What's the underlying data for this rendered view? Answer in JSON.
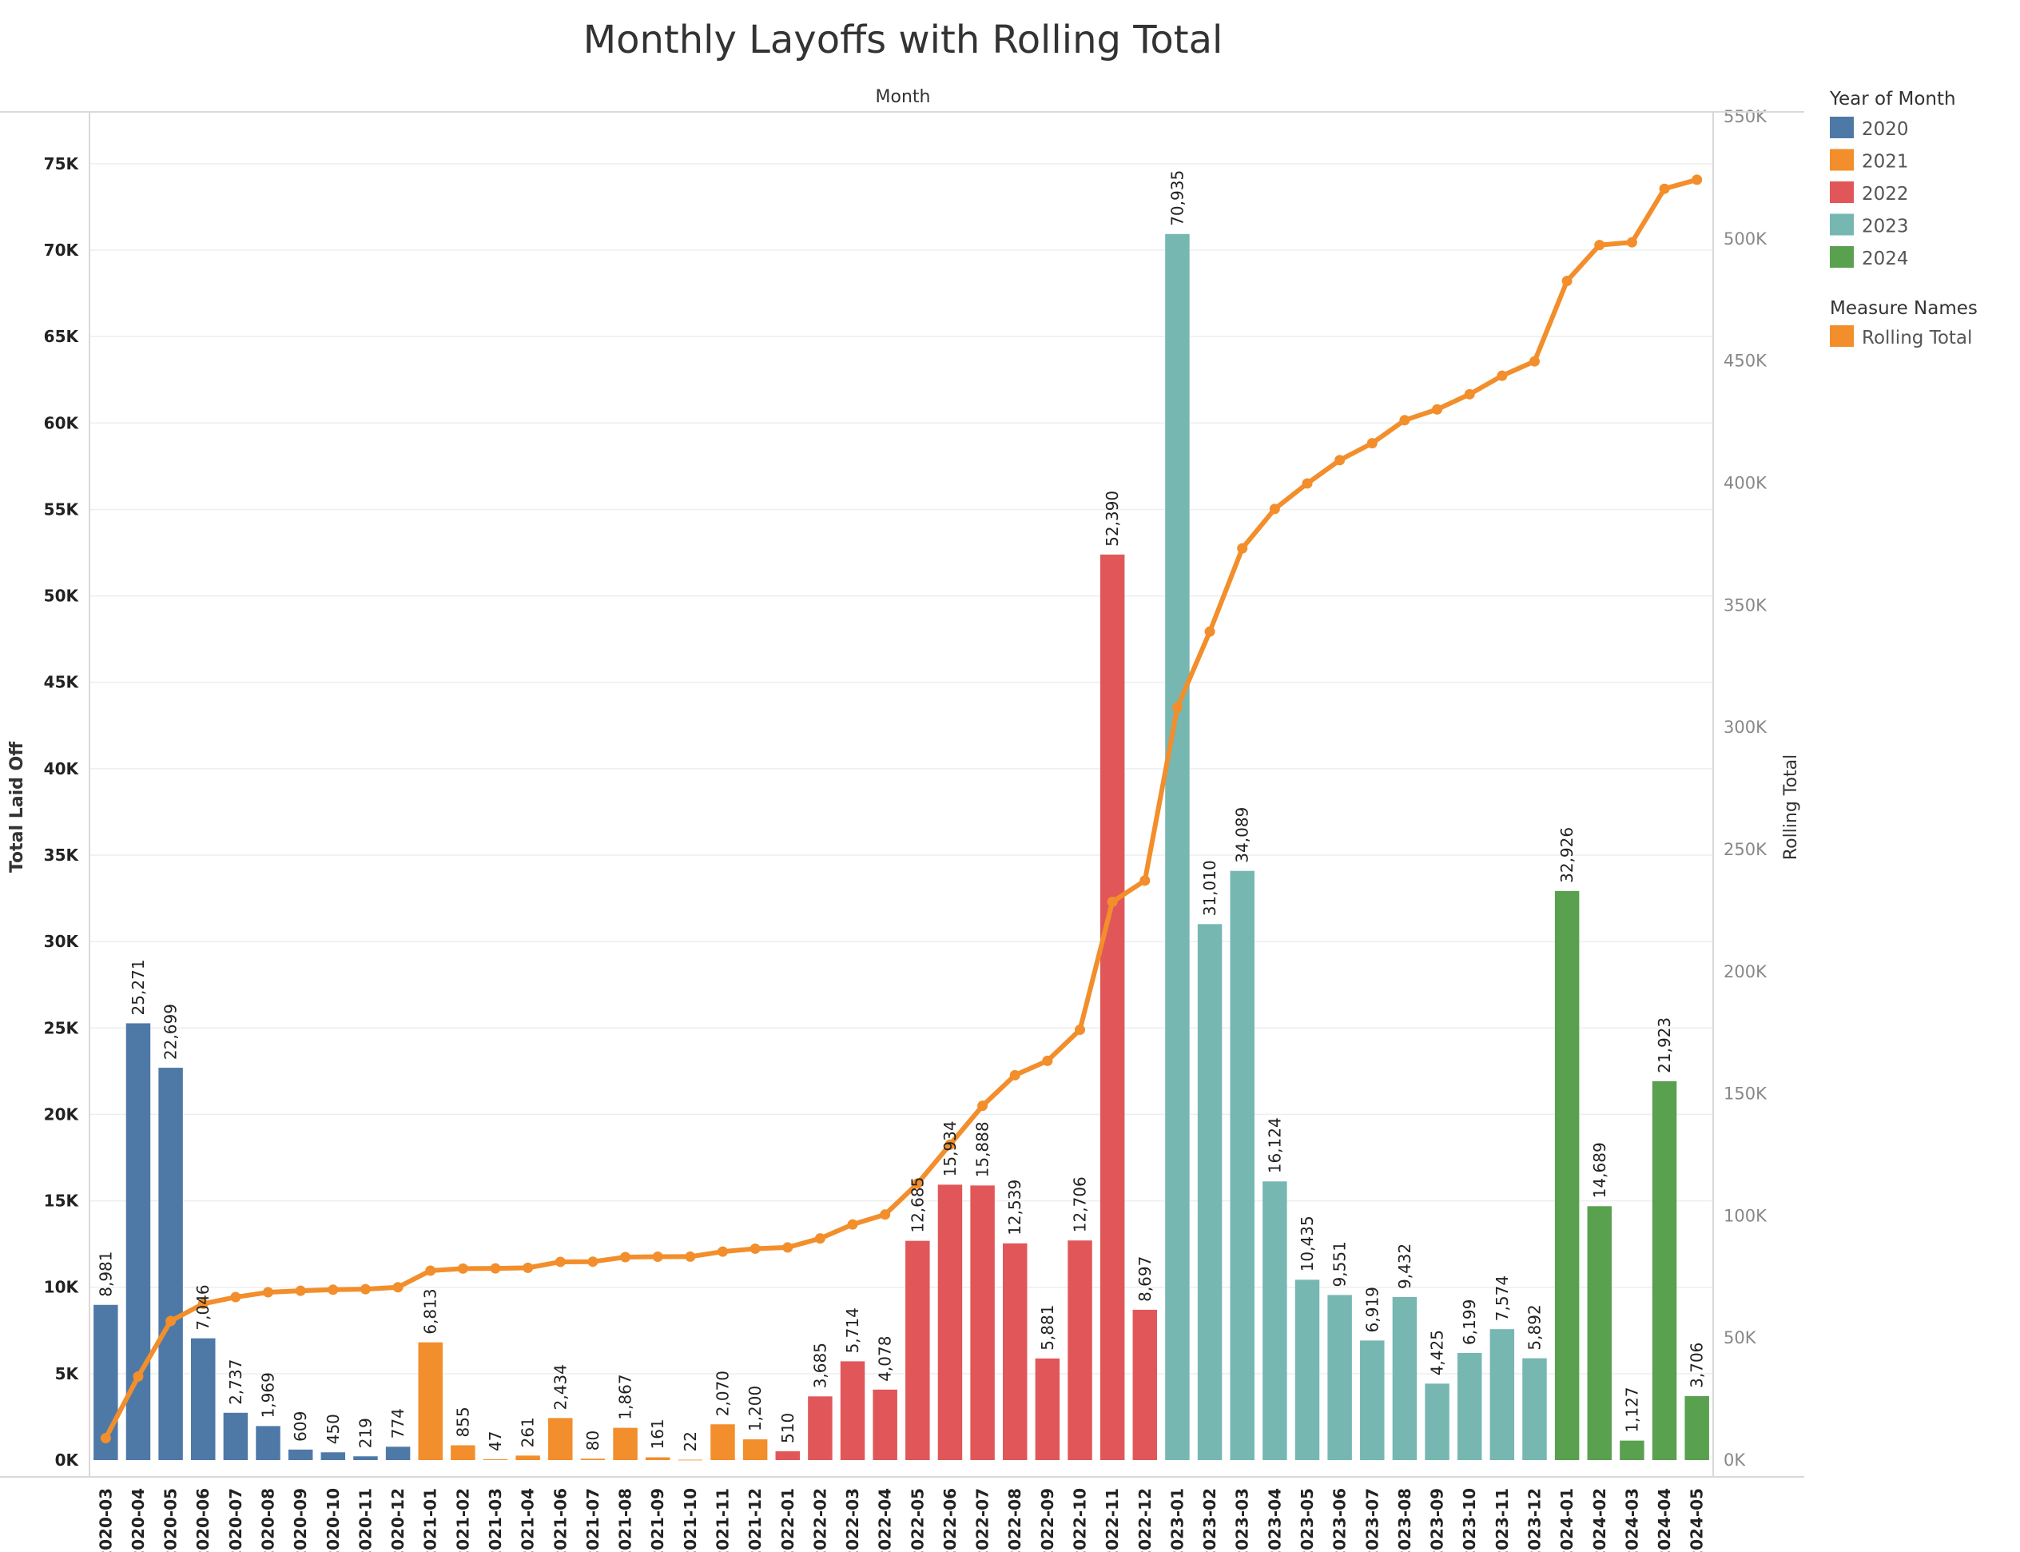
{
  "chart_data": {
    "type": "bar",
    "title": "Monthly Layoffs with Rolling Total",
    "top_axis_label": "Month",
    "ylabel": "Total Laid Off",
    "y2label": "Rolling Total",
    "ylim": [
      0,
      78000
    ],
    "y2lim": [
      0,
      552000
    ],
    "yticks": [
      {
        "value": 0,
        "label": "0K"
      },
      {
        "value": 5000,
        "label": "5K"
      },
      {
        "value": 10000,
        "label": "10K"
      },
      {
        "value": 15000,
        "label": "15K"
      },
      {
        "value": 20000,
        "label": "20K"
      },
      {
        "value": 25000,
        "label": "25K"
      },
      {
        "value": 30000,
        "label": "30K"
      },
      {
        "value": 35000,
        "label": "35K"
      },
      {
        "value": 40000,
        "label": "40K"
      },
      {
        "value": 45000,
        "label": "45K"
      },
      {
        "value": 50000,
        "label": "50K"
      },
      {
        "value": 55000,
        "label": "55K"
      },
      {
        "value": 60000,
        "label": "60K"
      },
      {
        "value": 65000,
        "label": "65K"
      },
      {
        "value": 70000,
        "label": "70K"
      },
      {
        "value": 75000,
        "label": "75K"
      }
    ],
    "y2ticks": [
      {
        "value": 0,
        "label": "0K"
      },
      {
        "value": 50000,
        "label": "50K"
      },
      {
        "value": 100000,
        "label": "100K"
      },
      {
        "value": 150000,
        "label": "150K"
      },
      {
        "value": 200000,
        "label": "200K"
      },
      {
        "value": 250000,
        "label": "250K"
      },
      {
        "value": 300000,
        "label": "300K"
      },
      {
        "value": 350000,
        "label": "350K"
      },
      {
        "value": 400000,
        "label": "400K"
      },
      {
        "value": 450000,
        "label": "450K"
      },
      {
        "value": 500000,
        "label": "500K"
      },
      {
        "value": 550000,
        "label": "550K"
      }
    ],
    "categories": [
      "2020-03",
      "2020-04",
      "2020-05",
      "2020-06",
      "2020-07",
      "2020-08",
      "2020-09",
      "2020-10",
      "2020-11",
      "2020-12",
      "2021-01",
      "2021-02",
      "2021-03",
      "2021-04",
      "2021-06",
      "2021-07",
      "2021-08",
      "2021-09",
      "2021-10",
      "2021-11",
      "2021-12",
      "2022-01",
      "2022-02",
      "2022-03",
      "2022-04",
      "2022-05",
      "2022-06",
      "2022-07",
      "2022-08",
      "2022-09",
      "2022-10",
      "2022-11",
      "2022-12",
      "2023-01",
      "2023-02",
      "2023-03",
      "2023-04",
      "2023-05",
      "2023-06",
      "2023-07",
      "2023-08",
      "2023-09",
      "2023-10",
      "2023-11",
      "2023-12",
      "2024-01",
      "2024-02",
      "2024-03",
      "2024-04",
      "2024-05"
    ],
    "values": [
      8981,
      25271,
      22699,
      7046,
      2737,
      1969,
      609,
      450,
      219,
      774,
      6813,
      855,
      47,
      261,
      2434,
      80,
      1867,
      161,
      22,
      2070,
      1200,
      510,
      3685,
      5714,
      4078,
      12685,
      15934,
      15888,
      12539,
      5881,
      12706,
      52390,
      8697,
      70935,
      31010,
      34089,
      16124,
      10435,
      9551,
      6919,
      9432,
      4425,
      6199,
      7574,
      5892,
      32926,
      14689,
      1127,
      21923,
      3706
    ],
    "value_labels": [
      "8,981",
      "25,271",
      "22,699",
      "7,046",
      "2,737",
      "1,969",
      "609",
      "450",
      "219",
      "774",
      "6,813",
      "855",
      "47",
      "261",
      "2,434",
      "80",
      "1,867",
      "161",
      "22",
      "2,070",
      "1,200",
      "510",
      "3,685",
      "5,714",
      "4,078",
      "12,685",
      "15,934",
      "15,888",
      "12,539",
      "5,881",
      "12,706",
      "52,390",
      "8,697",
      "70,935",
      "31,010",
      "34,089",
      "16,124",
      "10,435",
      "9,551",
      "6,919",
      "9,432",
      "4,425",
      "6,199",
      "7,574",
      "5,892",
      "32,926",
      "14,689",
      "1,127",
      "21,923",
      "3,706"
    ],
    "rolling_total": [
      8981,
      34252,
      56951,
      63997,
      66734,
      68703,
      69312,
      69762,
      69981,
      70755,
      77568,
      78423,
      78470,
      78731,
      81165,
      81245,
      83112,
      83273,
      83295,
      85365,
      86565,
      87075,
      90760,
      96474,
      100552,
      113237,
      129171,
      145059,
      157598,
      163479,
      176185,
      228575,
      237272,
      308207,
      339217,
      373306,
      389430,
      399865,
      409416,
      416335,
      425767,
      430192,
      436391,
      443965,
      449857,
      482783,
      497472,
      498599,
      520522,
      524228
    ],
    "years": [
      {
        "year": "2020",
        "color": "#4e79a7",
        "count": 10
      },
      {
        "year": "2021",
        "color": "#f28e2b",
        "count": 11
      },
      {
        "year": "2022",
        "color": "#e15759",
        "count": 12
      },
      {
        "year": "2023",
        "color": "#76b7b2",
        "count": 12
      },
      {
        "year": "2024",
        "color": "#59a14f",
        "count": 5
      }
    ],
    "line_color": "#f28e2b",
    "grid": true
  },
  "legend": {
    "year_title": "Year of Month",
    "measure_title": "Measure Names",
    "measure_item": "Rolling Total"
  }
}
